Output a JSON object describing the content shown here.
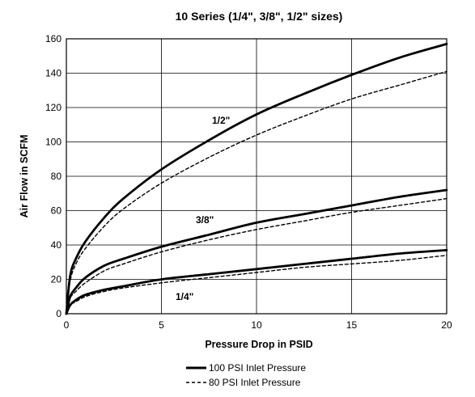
{
  "chart_data": {
    "type": "line",
    "title": "10 Series (1/4\", 3/8\", 1/2\" sizes)",
    "xlabel": "Pressure Drop in PSID",
    "ylabel": "Air Flow in SCFM",
    "xlim": [
      0,
      20
    ],
    "ylim": [
      0,
      160
    ],
    "xticks": [
      0,
      5,
      10,
      15,
      20
    ],
    "yticks": [
      0,
      20,
      40,
      60,
      80,
      100,
      120,
      140,
      160
    ],
    "grid": true,
    "legend_position": "bottom",
    "legend": [
      {
        "label": "100 PSI Inlet Pressure",
        "style": "solid"
      },
      {
        "label": "80 PSI Inlet Pressure",
        "style": "dashed"
      }
    ],
    "annotations": [
      "1/2\"",
      "3/8\"",
      "1/4\""
    ],
    "series": [
      {
        "size": "1/2\"",
        "pressure": "100 PSI Inlet Pressure",
        "style": "solid",
        "x": [
          0,
          0.2,
          0.5,
          1,
          2,
          3,
          5,
          7.5,
          10,
          12.5,
          15,
          17.5,
          20
        ],
        "y": [
          0,
          22,
          32,
          42,
          56,
          67,
          84,
          101,
          116,
          128,
          139,
          149,
          157
        ]
      },
      {
        "size": "1/2\"",
        "pressure": "80 PSI Inlet Pressure",
        "style": "dashed",
        "x": [
          0,
          0.2,
          0.5,
          1,
          2,
          3,
          5,
          7.5,
          10,
          12.5,
          15,
          17.5,
          20
        ],
        "y": [
          0,
          19,
          29,
          38,
          51,
          61,
          76,
          91,
          104,
          115,
          125,
          133,
          141
        ]
      },
      {
        "size": "3/8\"",
        "pressure": "100 PSI Inlet Pressure",
        "style": "solid",
        "x": [
          0,
          0.2,
          0.5,
          1,
          2,
          3,
          5,
          7.5,
          10,
          12.5,
          15,
          17.5,
          20
        ],
        "y": [
          0,
          10,
          15,
          21,
          28,
          32,
          39,
          46,
          53,
          58,
          63,
          68,
          72
        ]
      },
      {
        "size": "3/8\"",
        "pressure": "80 PSI Inlet Pressure",
        "style": "dashed",
        "x": [
          0,
          0.2,
          0.5,
          1,
          2,
          3,
          5,
          7.5,
          10,
          12.5,
          15,
          17.5,
          20
        ],
        "y": [
          0,
          9,
          13,
          18,
          25,
          29,
          36,
          43,
          49,
          54,
          59,
          63,
          67
        ]
      },
      {
        "size": "1/4\"",
        "pressure": "100 PSI Inlet Pressure",
        "style": "solid",
        "x": [
          0,
          0.2,
          0.5,
          1,
          2,
          3,
          5,
          7.5,
          10,
          12.5,
          15,
          17.5,
          20
        ],
        "y": [
          0,
          5,
          8,
          11,
          14,
          16,
          20,
          23,
          26,
          29,
          32,
          35,
          37
        ]
      },
      {
        "size": "1/4\"",
        "pressure": "80 PSI Inlet Pressure",
        "style": "dashed",
        "x": [
          0,
          0.2,
          0.5,
          1,
          2,
          3,
          5,
          7.5,
          10,
          12.5,
          15,
          17.5,
          20
        ],
        "y": [
          0,
          5,
          7,
          10,
          13,
          15,
          18,
          21,
          24,
          27,
          29,
          31,
          34
        ]
      }
    ]
  }
}
